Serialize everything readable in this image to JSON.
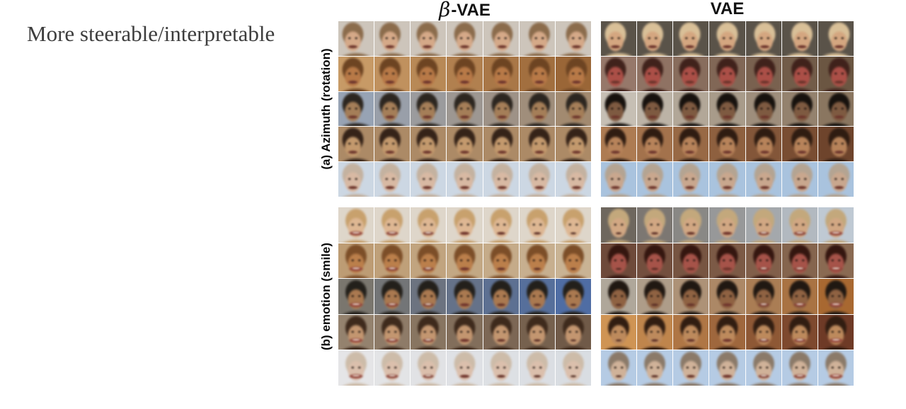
{
  "slide": {
    "title": "More steerable/interpretable",
    "background": "#ffffff"
  },
  "figure": {
    "column_headers": [
      {
        "id": "beta-vae",
        "label": "β-VAE"
      },
      {
        "id": "vae",
        "label": "VAE"
      }
    ],
    "row_labels": [
      {
        "id": "azimuth",
        "label": "(a) Azimuth (rotation)"
      },
      {
        "id": "emotion",
        "label": "(b) emotion (smile)"
      }
    ],
    "grid": {
      "rows": 5,
      "cols": 7
    },
    "colors": {
      "title_text": "#3d3d3d",
      "header_text": "#111111",
      "row_label_text": "#0a0a0a",
      "background": "#ffffff"
    },
    "panels": [
      {
        "id": "beta-vae-azimuth",
        "column": "beta-vae",
        "row_label": "azimuth",
        "traversal": "azimuth",
        "faces": [
          {
            "bg": "#cdc5bb",
            "hair": "#8a6c4e",
            "skin": "#d3a98a",
            "desc": "blonde woman on light background rotating"
          },
          {
            "bg": "#c79a66",
            "bg2": "#9a6637",
            "hair": "#6b4424",
            "skin": "#b5794a",
            "desc": "blurred orange-toned face rotating"
          },
          {
            "bg": "#97a3b4",
            "bg2": "#a28a70",
            "hair": "#2c2620",
            "skin": "#a37e5a",
            "desc": "dark-haired man on blue-grey background rotating"
          },
          {
            "bg": "#ac8a66",
            "hair": "#342319",
            "skin": "#c1996f",
            "desc": "smiling dark-haired woman on tan background rotating"
          },
          {
            "bg": "#ccd7e3",
            "hair": "#c3b2a1",
            "skin": "#d7b9a4",
            "desc": "pale light-haired person on light blue background rotating"
          }
        ]
      },
      {
        "id": "vae-azimuth",
        "column": "vae",
        "row_label": "azimuth",
        "traversal": "azimuth",
        "faces": [
          {
            "bg": "#5a5349",
            "hair": "#d8c09a",
            "skin": "#d2a682",
            "desc": "smiling blonde woman on dark background"
          },
          {
            "bg": "#96786a",
            "bg2": "#6b5642",
            "hair": "#3f221c",
            "skin": "#a85048",
            "desc": "red-tinted face, sunglasses appear while rotating"
          },
          {
            "bg": "#c6bfb4",
            "bg2": "#8a7660",
            "hair": "#17120e",
            "skin": "#7d5a42",
            "desc": "smiling dark-skinned woman turning serious"
          },
          {
            "bg": "#ad7b52",
            "bg2": "#6e442c",
            "hair": "#2e1c12",
            "skin": "#b5835c",
            "desc": "dark-haired woman on warm brown background"
          },
          {
            "bg": "#a9c3de",
            "hair": "#b3a493",
            "skin": "#c8a78f",
            "desc": "bald older man on light blue background"
          }
        ]
      },
      {
        "id": "beta-vae-emotion",
        "column": "beta-vae",
        "row_label": "emotion",
        "traversal": "smile-decreasing",
        "faces": [
          {
            "bg": "#ded6ca",
            "hair": "#c6a170",
            "skin": "#dcb795",
            "desc": "blonde woman, smile fades left to right"
          },
          {
            "bg": "#bd9c74",
            "bg2": "#c9b394",
            "hair": "#7a4e2a",
            "skin": "#b97f4e",
            "desc": "blurred orange-toned face, smile fades"
          },
          {
            "bg": "#7a766e",
            "bg2": "#4f6da4",
            "hair": "#23201b",
            "skin": "#a87952",
            "desc": "man, background shifts toward blue"
          },
          {
            "bg": "#94826e",
            "bg2": "#705a48",
            "hair": "#3d2a1d",
            "skin": "#c19672",
            "desc": "smiling dark-haired woman, smile fades"
          },
          {
            "bg": "#e5e5e7",
            "bg2": "#d9dde2",
            "hair": "#ccbcaa",
            "skin": "#dabfad",
            "desc": "pale blonde person, smile fades"
          }
        ]
      },
      {
        "id": "vae-emotion",
        "column": "vae",
        "row_label": "emotion",
        "traversal": "smile-increasing",
        "faces": [
          {
            "bg": "#6e675e",
            "bg2": "#bfc9d3",
            "hair": "#c2a87e",
            "skin": "#cfa785",
            "desc": "frown turns to smile, hair lightens"
          },
          {
            "bg": "#6e4a3a",
            "bg2": "#8a6a52",
            "hair": "#331610",
            "skin": "#a3544a",
            "desc": "dark red-tinted face gains a smile"
          },
          {
            "bg": "#afa79a",
            "bg2": "#a86831",
            "hair": "#201812",
            "skin": "#8d6244",
            "desc": "dark-haired woman, background turns orange"
          },
          {
            "bg": "#cf9454",
            "bg2": "#6e3a26",
            "hair": "#301d12",
            "skin": "#bb8a5f",
            "desc": "woman on orange background gains a smile"
          },
          {
            "bg": "#b5cbe4",
            "hair": "#8a7a6a",
            "skin": "#cfb29a",
            "desc": "man on light blue background turns smiling and bald"
          }
        ]
      }
    ]
  }
}
